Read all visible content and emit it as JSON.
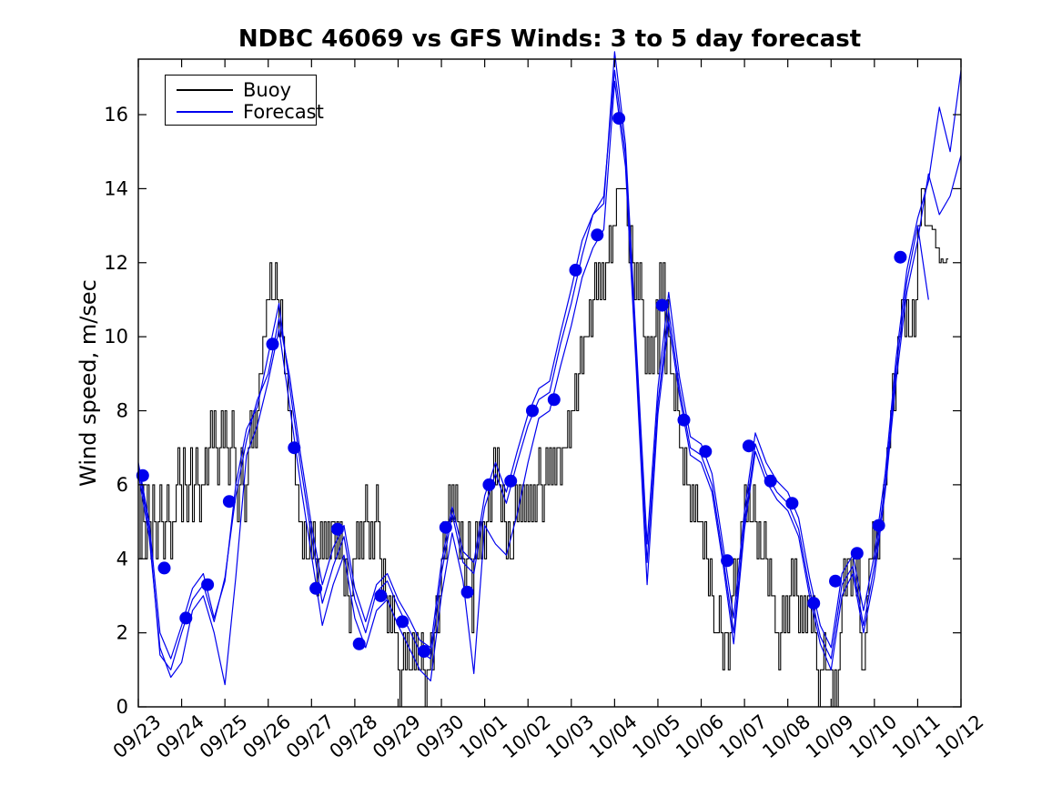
{
  "page": {
    "background": "#ffffff"
  },
  "chart_data": {
    "type": "line",
    "title": "NDBC 46069 vs GFS Winds: 3 to 5 day forecast",
    "xlabel": "",
    "ylabel": "Wind speed, m/sec",
    "x_tick_labels": [
      "09/23",
      "09/24",
      "09/25",
      "09/26",
      "09/27",
      "09/28",
      "09/29",
      "09/30",
      "10/01",
      "10/02",
      "10/03",
      "10/04",
      "10/05",
      "10/06",
      "10/07",
      "10/08",
      "10/09",
      "10/10",
      "10/11",
      "10/12"
    ],
    "x_range_days": [
      0,
      19
    ],
    "ylim": [
      0,
      17.5
    ],
    "yticks": [
      0,
      2,
      4,
      6,
      8,
      10,
      12,
      14,
      16
    ],
    "grid": false,
    "colors": {
      "buoy": "#000000",
      "forecast": "#0000ee",
      "background": "#ffffff"
    },
    "legend": {
      "position": "top-left",
      "entries": [
        {
          "label": "Buoy",
          "color": "#000000"
        },
        {
          "label": "Forecast",
          "color": "#0000ee"
        }
      ]
    },
    "series": [
      {
        "name": "Buoy",
        "type": "step",
        "color": "#000000",
        "t0": 0,
        "dt_days": 0.0416667,
        "values": [
          6,
          4,
          6,
          5,
          4,
          6,
          5,
          4,
          6,
          5,
          4,
          5,
          6,
          5,
          4,
          5,
          6,
          5,
          4,
          5,
          5,
          6,
          7,
          6,
          5,
          7,
          6,
          5,
          6,
          7,
          5,
          6,
          7,
          6,
          5,
          6,
          6,
          7,
          6,
          7,
          8,
          7,
          8,
          7,
          6,
          7,
          8,
          7,
          8,
          7,
          6,
          7,
          8,
          7,
          6,
          5,
          6,
          7,
          6,
          5,
          6,
          7,
          8,
          7,
          8,
          7,
          8,
          9,
          9,
          10,
          10,
          11,
          11,
          12,
          11,
          11,
          12,
          11,
          10,
          11,
          10,
          9,
          9,
          8,
          8,
          7,
          7,
          6,
          6,
          5,
          5,
          4,
          5,
          4,
          4,
          5,
          4,
          5,
          4,
          3,
          4,
          5,
          4,
          5,
          4,
          5,
          4,
          5,
          5,
          4,
          5,
          4,
          5,
          4,
          3,
          4,
          3,
          2,
          3,
          4,
          4,
          5,
          4,
          5,
          4,
          5,
          6,
          5,
          4,
          5,
          4,
          5,
          6,
          5,
          4,
          3,
          4,
          3,
          2,
          3,
          2,
          3,
          2,
          2,
          1,
          0,
          1,
          2,
          1,
          2,
          1,
          1,
          2,
          1,
          2,
          1,
          1,
          2,
          1,
          0,
          1,
          1,
          2,
          1,
          2,
          3,
          2,
          3,
          4,
          5,
          4,
          5,
          6,
          5,
          6,
          5,
          6,
          5,
          4,
          5,
          4,
          3,
          4,
          5,
          4,
          2,
          4,
          5,
          4,
          5,
          4,
          5,
          4,
          5,
          6,
          5,
          6,
          7,
          6,
          7,
          6,
          5,
          6,
          5,
          4,
          5,
          4,
          4,
          5,
          6,
          5,
          6,
          5,
          6,
          5,
          6,
          5,
          6,
          5,
          6,
          5,
          6,
          7,
          6,
          5,
          6,
          7,
          6,
          7,
          6,
          7,
          6,
          7,
          7,
          6,
          7,
          7,
          7,
          8,
          7,
          8,
          8,
          9,
          8,
          9,
          10,
          9,
          10,
          10,
          10,
          11,
          10,
          11,
          12,
          11,
          12,
          11,
          12,
          11,
          12,
          12,
          13,
          12,
          13,
          13,
          14,
          14,
          14,
          14,
          14,
          14,
          13,
          12,
          13,
          12,
          11,
          12,
          11,
          12,
          11,
          10,
          9,
          10,
          9,
          10,
          9,
          10,
          11,
          9,
          12,
          11,
          12,
          9,
          11,
          10,
          9,
          9,
          8,
          9,
          8,
          7,
          7,
          6,
          7,
          6,
          6,
          5,
          6,
          5,
          6,
          5,
          5,
          5,
          4,
          5,
          4,
          3,
          4,
          3,
          2,
          2,
          2,
          3,
          2,
          1,
          2,
          2,
          1,
          2,
          3,
          4,
          3,
          4,
          4,
          5,
          5,
          6,
          5,
          6,
          5,
          5,
          6,
          5,
          4,
          5,
          4,
          4,
          5,
          4,
          3,
          4,
          3,
          3,
          2,
          2,
          1,
          2,
          3,
          2,
          3,
          2,
          3,
          4,
          3,
          4,
          3,
          2,
          3,
          2,
          3,
          2,
          3,
          3,
          2,
          3,
          2,
          1,
          0,
          1,
          1,
          2,
          1,
          1,
          1,
          1,
          0,
          1,
          0,
          1,
          2,
          3,
          4,
          3,
          4,
          4,
          3,
          4,
          4,
          3,
          4,
          2,
          1,
          1,
          2,
          3,
          4,
          4,
          5,
          4,
          5,
          4,
          5,
          5,
          6,
          6,
          7,
          7,
          8,
          9,
          8,
          9,
          10,
          10,
          11,
          11,
          10,
          11,
          10,
          10,
          11,
          10,
          11,
          13,
          13,
          14,
          14,
          13,
          13,
          13,
          13,
          12.9,
          12.9,
          12.4,
          12.4,
          12,
          12.1,
          12,
          12,
          12.1
        ]
      },
      {
        "name": "Forecast 5-day run",
        "type": "line",
        "color": "#0000ee",
        "t0": 0,
        "dt_days": 0.25,
        "values": [
          6.6,
          5.0,
          2.0,
          1.3,
          2.2,
          3.2,
          3.6,
          2.4,
          3.4,
          6.0,
          7.5,
          8.1,
          9.5,
          10.9,
          8.6,
          6.5,
          4.6,
          2.8,
          3.8,
          4.6,
          2.9,
          2.0,
          3.1,
          3.4,
          2.7,
          2.1,
          1.5,
          1.3,
          3.6,
          5.2,
          3.9,
          3.6,
          5.4,
          6.3,
          5.5,
          6.6,
          7.6,
          8.3,
          8.5,
          9.8,
          10.9,
          12.2,
          13.3,
          13.6,
          17.7,
          15.2,
          9.8,
          4.4,
          8.6,
          11.2,
          8.9,
          7.3,
          7.1,
          6.3,
          4.4,
          2.4,
          5.3,
          7.4,
          6.6,
          6.1,
          5.8,
          5.1,
          3.5,
          2.2,
          1.6,
          3.6,
          4.1,
          2.6,
          4.1,
          6.3,
          9.4,
          11.8,
          13.2,
          14.2,
          16.2,
          15.0,
          17.2
        ]
      },
      {
        "name": "Forecast 4-day run",
        "type": "line",
        "color": "#0000ee",
        "t0": 0,
        "dt_days": 0.25,
        "values": [
          6.3,
          4.6,
          1.6,
          0.8,
          1.2,
          2.6,
          3.0,
          2.0,
          0.6,
          3.5,
          6.8,
          7.6,
          8.8,
          10.2,
          8.1,
          6.0,
          4.1,
          2.2,
          3.3,
          4.1,
          2.4,
          1.6,
          2.6,
          2.9,
          2.2,
          1.6,
          1.0,
          0.7,
          3.0,
          4.7,
          3.4,
          0.9,
          4.9,
          4.4,
          4.1,
          5.2,
          6.6,
          7.8,
          8.0,
          9.2,
          10.3,
          11.6,
          12.4,
          12.9,
          16.9,
          14.6,
          9.1,
          3.3,
          7.9,
          10.4,
          8.4,
          6.8,
          6.6,
          5.8,
          3.9,
          1.7,
          4.8,
          6.9,
          6.1,
          5.6,
          5.3,
          4.6,
          3.0,
          1.7,
          1.0,
          3.0,
          3.6,
          2.0,
          3.5,
          5.8,
          8.8,
          11.2,
          12.6,
          14.4,
          13.3,
          13.8,
          14.9
        ]
      },
      {
        "name": "Forecast 3-day run",
        "type": "line",
        "color": "#0000ee",
        "t0": 0,
        "dt_days": 0.25,
        "values": [
          6.5,
          4.8,
          1.4,
          1.0,
          2.0,
          2.9,
          3.3,
          2.3,
          3.5,
          5.7,
          7.2,
          8.3,
          9.0,
          10.5,
          8.9,
          6.8,
          4.9,
          3.3,
          4.3,
          4.9,
          3.2,
          2.3,
          3.3,
          3.6,
          2.9,
          2.4,
          1.8,
          1.6,
          3.9,
          5.4,
          4.2,
          3.9,
          5.7,
          6.6,
          5.8,
          6.9,
          7.9,
          8.6,
          8.8,
          10.1,
          11.3,
          12.6,
          13.3,
          13.8,
          17.2,
          14.9,
          9.4,
          3.9,
          8.2,
          10.7,
          8.6,
          7.0,
          6.8,
          6.0,
          4.1,
          2.0,
          5.0,
          7.1,
          6.3,
          5.8,
          5.5,
          4.8,
          3.2,
          1.9,
          1.3,
          3.3,
          3.8,
          2.2,
          3.8,
          6.0,
          9.1,
          11.5,
          13.0,
          11.0
        ]
      },
      {
        "name": "Forecast verification points",
        "type": "scatter",
        "color": "#0000ee",
        "marker_radius": 7,
        "points": [
          [
            0.1,
            6.25
          ],
          [
            0.6,
            3.75
          ],
          [
            1.1,
            2.4
          ],
          [
            1.6,
            3.3
          ],
          [
            2.1,
            5.55
          ],
          [
            3.1,
            9.8
          ],
          [
            3.6,
            7.0
          ],
          [
            4.1,
            3.2
          ],
          [
            4.6,
            4.8
          ],
          [
            5.1,
            1.7
          ],
          [
            5.6,
            3.0
          ],
          [
            6.1,
            2.3
          ],
          [
            6.6,
            1.5
          ],
          [
            7.1,
            4.85
          ],
          [
            7.6,
            3.1
          ],
          [
            8.1,
            6.0
          ],
          [
            8.6,
            6.1
          ],
          [
            9.1,
            8.0
          ],
          [
            9.6,
            8.3
          ],
          [
            10.1,
            11.8
          ],
          [
            10.6,
            12.75
          ],
          [
            11.1,
            15.9
          ],
          [
            12.1,
            10.85
          ],
          [
            12.6,
            7.75
          ],
          [
            13.1,
            6.9
          ],
          [
            13.6,
            3.95
          ],
          [
            14.1,
            7.05
          ],
          [
            14.6,
            6.1
          ],
          [
            15.1,
            5.5
          ],
          [
            15.6,
            2.8
          ],
          [
            16.1,
            3.4
          ],
          [
            16.6,
            4.15
          ],
          [
            17.1,
            4.9
          ],
          [
            17.6,
            12.15
          ]
        ]
      }
    ]
  }
}
